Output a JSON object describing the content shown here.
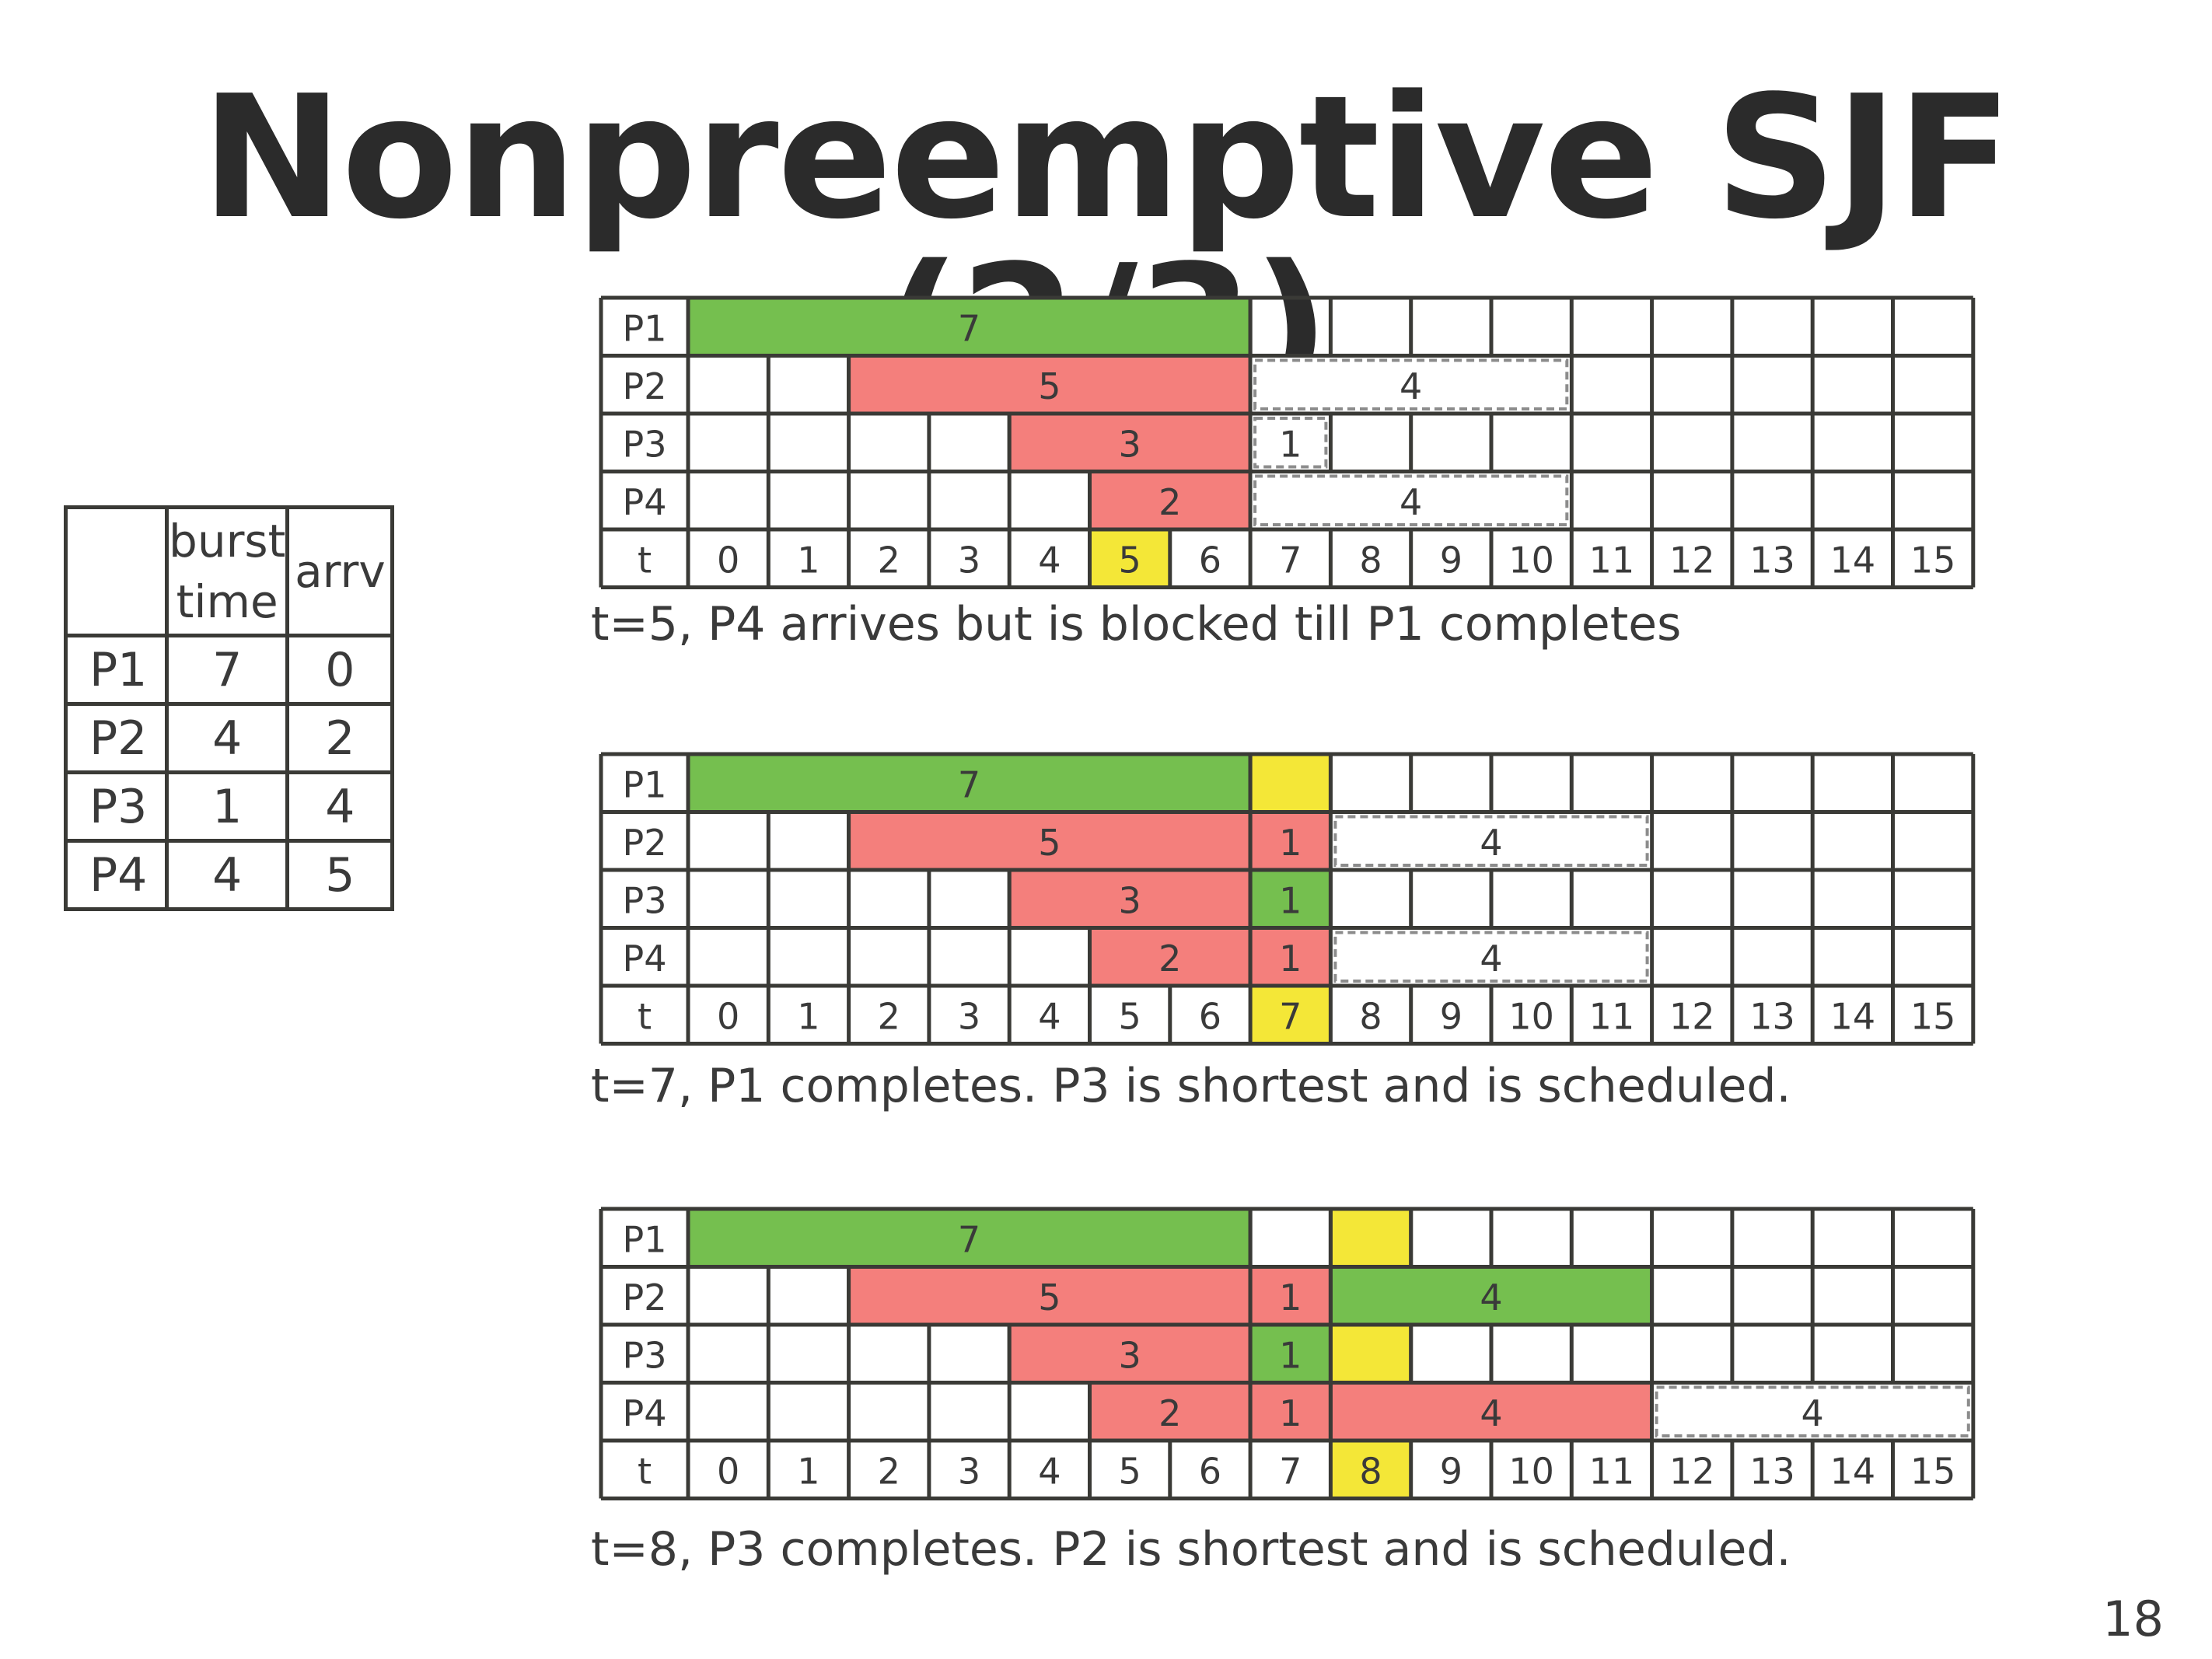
{
  "title": "Nonpreemptive SJF (2/3)",
  "page_number": "18",
  "job_table": {
    "header": [
      "",
      "burst time",
      "arrv"
    ],
    "rows": [
      {
        "name": "P1",
        "burst": "7",
        "arrv": "0"
      },
      {
        "name": "P2",
        "burst": "4",
        "arrv": "2"
      },
      {
        "name": "P3",
        "burst": "1",
        "arrv": "4"
      },
      {
        "name": "P4",
        "burst": "4",
        "arrv": "5"
      }
    ]
  },
  "colors": {
    "grid": "#3a3a36",
    "running": "#75bf4f",
    "waiting": "#f47f7c",
    "highlight": "#f4e737",
    "pending_border": "#8c8c8c",
    "text": "#3a3a3a"
  },
  "charts": [
    {
      "rows": [
        "P1",
        "P2",
        "P3",
        "P4"
      ],
      "time_label": "t",
      "times": [
        "0",
        "1",
        "2",
        "3",
        "4",
        "5",
        "6",
        "7",
        "8",
        "9",
        "10",
        "11",
        "12",
        "13",
        "14",
        "15"
      ],
      "highlight_time": 5,
      "bars": [
        {
          "row": 0,
          "start": 0,
          "end": 7,
          "kind": "running",
          "label": "7"
        },
        {
          "row": 1,
          "start": 2,
          "end": 7,
          "kind": "waiting",
          "label": "5"
        },
        {
          "row": 1,
          "start": 7,
          "end": 11,
          "kind": "pending",
          "label": "4"
        },
        {
          "row": 2,
          "start": 4,
          "end": 7,
          "kind": "waiting",
          "label": "3"
        },
        {
          "row": 2,
          "start": 7,
          "end": 8,
          "kind": "pending",
          "label": "1"
        },
        {
          "row": 3,
          "start": 5,
          "end": 7,
          "kind": "waiting",
          "label": "2"
        },
        {
          "row": 3,
          "start": 7,
          "end": 11,
          "kind": "pending",
          "label": "4"
        }
      ],
      "caption": "t=5, P4 arrives but is blocked till P1 completes"
    },
    {
      "rows": [
        "P1",
        "P2",
        "P3",
        "P4"
      ],
      "time_label": "t",
      "times": [
        "0",
        "1",
        "2",
        "3",
        "4",
        "5",
        "6",
        "7",
        "8",
        "9",
        "10",
        "11",
        "12",
        "13",
        "14",
        "15"
      ],
      "highlight_time": 7,
      "bars": [
        {
          "row": 0,
          "start": 0,
          "end": 7,
          "kind": "running",
          "label": "7"
        },
        {
          "row": 0,
          "start": 7,
          "end": 8,
          "kind": "highlight",
          "label": ""
        },
        {
          "row": 1,
          "start": 2,
          "end": 7,
          "kind": "waiting",
          "label": "5"
        },
        {
          "row": 1,
          "start": 7,
          "end": 8,
          "kind": "waiting",
          "label": "1"
        },
        {
          "row": 1,
          "start": 8,
          "end": 12,
          "kind": "pending",
          "label": "4"
        },
        {
          "row": 2,
          "start": 4,
          "end": 7,
          "kind": "waiting",
          "label": "3"
        },
        {
          "row": 2,
          "start": 7,
          "end": 8,
          "kind": "running",
          "label": "1"
        },
        {
          "row": 3,
          "start": 5,
          "end": 7,
          "kind": "waiting",
          "label": "2"
        },
        {
          "row": 3,
          "start": 7,
          "end": 8,
          "kind": "waiting",
          "label": "1"
        },
        {
          "row": 3,
          "start": 8,
          "end": 12,
          "kind": "pending",
          "label": "4"
        }
      ],
      "caption": "t=7, P1 completes.  P3 is shortest and is scheduled."
    },
    {
      "rows": [
        "P1",
        "P2",
        "P3",
        "P4"
      ],
      "time_label": "t",
      "times": [
        "0",
        "1",
        "2",
        "3",
        "4",
        "5",
        "6",
        "7",
        "8",
        "9",
        "10",
        "11",
        "12",
        "13",
        "14",
        "15"
      ],
      "highlight_time": 8,
      "bars": [
        {
          "row": 0,
          "start": 0,
          "end": 7,
          "kind": "running",
          "label": "7"
        },
        {
          "row": 0,
          "start": 8,
          "end": 9,
          "kind": "highlight",
          "label": ""
        },
        {
          "row": 1,
          "start": 2,
          "end": 7,
          "kind": "waiting",
          "label": "5"
        },
        {
          "row": 1,
          "start": 7,
          "end": 8,
          "kind": "waiting",
          "label": "1"
        },
        {
          "row": 1,
          "start": 8,
          "end": 12,
          "kind": "running",
          "label": "4"
        },
        {
          "row": 2,
          "start": 4,
          "end": 7,
          "kind": "waiting",
          "label": "3"
        },
        {
          "row": 2,
          "start": 7,
          "end": 8,
          "kind": "running",
          "label": "1"
        },
        {
          "row": 2,
          "start": 8,
          "end": 9,
          "kind": "highlight",
          "label": ""
        },
        {
          "row": 3,
          "start": 5,
          "end": 7,
          "kind": "waiting",
          "label": "2"
        },
        {
          "row": 3,
          "start": 7,
          "end": 8,
          "kind": "waiting",
          "label": "1"
        },
        {
          "row": 3,
          "start": 8,
          "end": 12,
          "kind": "waiting",
          "label": "4"
        },
        {
          "row": 3,
          "start": 12,
          "end": 16,
          "kind": "pending",
          "label": "4"
        }
      ],
      "caption": "t=8, P3 completes.  P2 is shortest and is scheduled."
    }
  ]
}
